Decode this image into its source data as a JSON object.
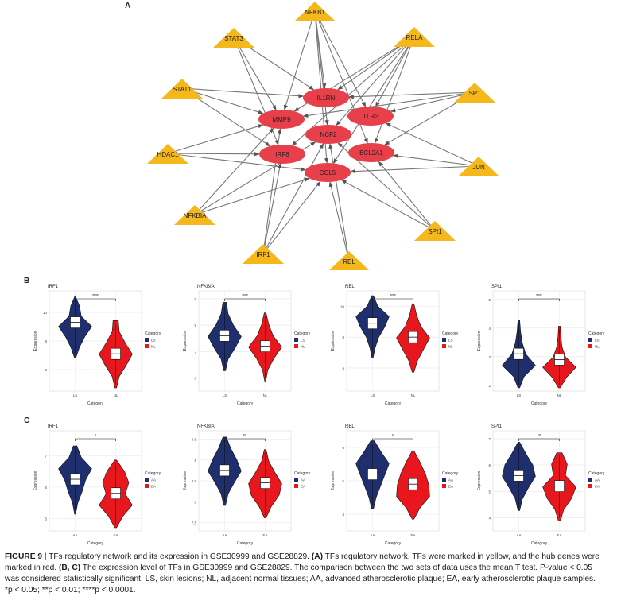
{
  "panels": {
    "a": "A",
    "b": "B",
    "c": "C"
  },
  "network": {
    "hub_color": "#e8404b",
    "tf_color": "#f5b81a",
    "hubs": [
      "IL1RN",
      "MMP9",
      "TLR2",
      "NCF2",
      "IRF8",
      "BCL2A1",
      "CCL5"
    ],
    "tfs": [
      "NFKB1",
      "STAT3",
      "RELA",
      "STAT1",
      "SP1",
      "HDAC1",
      "JUN",
      "NFKBIA",
      "SPI1",
      "IRF1",
      "REL"
    ]
  },
  "chart_data": [
    {
      "type": "violin",
      "title": "IRF1",
      "xlabel": "Category",
      "ylabel": "Expression",
      "categories": [
        "LS",
        "NL"
      ],
      "ylim": [
        4.5,
        11.5
      ],
      "yticks": [
        6,
        8,
        10
      ],
      "medians": [
        9.3,
        7.1
      ],
      "significance": "****",
      "legend_title": "Category",
      "legend": [
        "LS",
        "NL"
      ]
    },
    {
      "type": "violin",
      "title": "NFKBIA",
      "xlabel": "Category",
      "ylabel": "Expression",
      "categories": [
        "LS",
        "NL"
      ],
      "ylim": [
        5.5,
        9.3
      ],
      "yticks": [
        6,
        7,
        8,
        9
      ],
      "medians": [
        7.6,
        7.2
      ],
      "significance": "****",
      "legend_title": "Category",
      "legend": [
        "LS",
        "NL"
      ]
    },
    {
      "type": "violin",
      "title": "REL",
      "xlabel": "Category",
      "ylabel": "Expression",
      "categories": [
        "LS",
        "NL"
      ],
      "ylim": [
        4.5,
        11.0
      ],
      "yticks": [
        6,
        8,
        10
      ],
      "medians": [
        8.9,
        8.0
      ],
      "significance": "****",
      "legend_title": "Category",
      "legend": [
        "LS",
        "NL"
      ]
    },
    {
      "type": "violin",
      "title": "SPI1",
      "xlabel": "Category",
      "ylabel": "Expression",
      "categories": [
        "LS",
        "NL"
      ],
      "ylim": [
        1.8,
        5.3
      ],
      "yticks": [
        2,
        3,
        4,
        5
      ],
      "medians": [
        3.1,
        2.9
      ],
      "significance": "****",
      "legend_title": "Category",
      "legend": [
        "LS",
        "NL"
      ]
    },
    {
      "type": "violin",
      "title": "IRF1",
      "xlabel": "Category",
      "ylabel": "Expression",
      "categories": [
        "AA",
        "EA"
      ],
      "ylim": [
        4.6,
        7.8
      ],
      "yticks": [
        5,
        6,
        7
      ],
      "medians": [
        6.25,
        5.8
      ],
      "significance": "*",
      "legend_title": "Category",
      "legend": [
        "AA",
        "EA"
      ]
    },
    {
      "type": "violin",
      "title": "NFKBIA",
      "xlabel": "Category",
      "ylabel": "Expression",
      "categories": [
        "AA",
        "EA"
      ],
      "ylim": [
        7.3,
        9.7
      ],
      "yticks": [
        7.5,
        8.0,
        8.5,
        9.0,
        9.5
      ],
      "medians": [
        8.75,
        8.45
      ],
      "significance": "**",
      "legend_title": "Category",
      "legend": [
        "AA",
        "EA"
      ]
    },
    {
      "type": "violin",
      "title": "REL",
      "xlabel": "Category",
      "ylabel": "Expression",
      "categories": [
        "AA",
        "EA"
      ],
      "ylim": [
        3.5,
        6.5
      ],
      "yticks": [
        4,
        5,
        6
      ],
      "medians": [
        5.2,
        4.9
      ],
      "significance": "*",
      "legend_title": "Category",
      "legend": [
        "AA",
        "EA"
      ]
    },
    {
      "type": "violin",
      "title": "SPI1",
      "xlabel": "Category",
      "ylabel": "Expression",
      "categories": [
        "AA",
        "EA"
      ],
      "ylim": [
        3.5,
        7.3
      ],
      "yticks": [
        4,
        5,
        6,
        7
      ],
      "medians": [
        5.6,
        5.2
      ],
      "significance": "**",
      "legend_title": "Category",
      "legend": [
        "AA",
        "EA"
      ]
    }
  ],
  "colors": {
    "group1": "#1f2f6d",
    "group2": "#e8161d"
  },
  "caption": {
    "fig_label": "FIGURE 9",
    "title": " | TFs regulatory network and its expression in GSE30999 and GSE28829. ",
    "a_label": "(A)",
    "a_text": " TFs regulatory network. TFs were marked in yellow, and the hub genes were",
    "line2_pre": "marked in red. ",
    "bc_label": "(B, C)",
    "line2_text": " The expression level of TFs in GSE30999 and GSE28829. The comparison between the two sets of data uses the mean T test. P-value < 0.05",
    "line3": "was considered statistically significant. LS, skin lesions; NL, adjacent normal tissues; AA, advanced atherosclerotic plaque; EA, early atherosclerotic plaque samples.",
    "line4": "*p < 0.05; **p < 0.01; ****p < 0.0001."
  }
}
